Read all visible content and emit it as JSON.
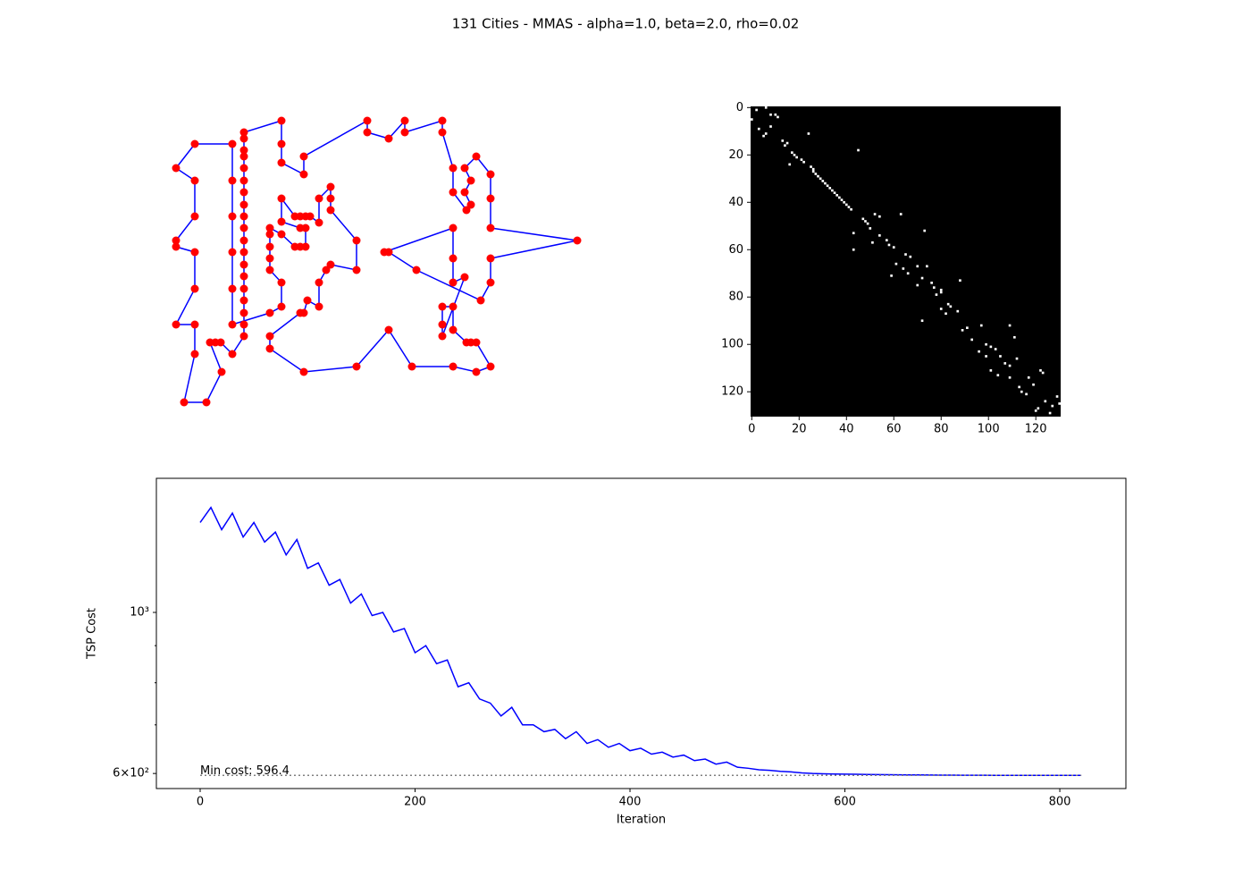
{
  "title": "131 Cities - MMAS - alpha=1.0, beta=2.0, rho=0.02",
  "chart_data": [
    {
      "type": "tour",
      "line_color": "#0000ff",
      "marker_color": "#ff0000",
      "xlim": [
        180,
        660
      ],
      "ylim": [
        460,
        125
      ],
      "x": [
        315,
        273,
        273,
        273,
        273,
        273,
        273,
        273,
        273,
        273,
        273,
        273,
        273,
        273,
        273,
        273,
        273,
        273,
        273,
        273,
        260,
        247,
        241,
        235,
        248,
        231,
        206,
        218,
        218,
        197,
        218,
        218,
        197,
        197,
        218,
        218,
        197,
        218,
        260,
        260,
        260,
        260,
        260,
        260,
        302,
        315,
        315,
        302,
        302,
        302,
        302,
        302,
        315,
        330,
        336,
        342,
        342,
        336,
        315,
        315,
        330,
        336,
        342,
        347,
        357,
        357,
        370,
        370,
        370,
        399,
        399,
        370,
        365,
        357,
        357,
        344,
        340,
        336,
        302,
        302,
        340,
        399,
        435,
        461,
        507,
        533,
        549,
        533,
        527,
        522,
        507,
        507,
        495,
        495,
        495,
        520,
        507,
        507,
        507,
        430,
        435,
        466,
        538,
        549,
        549,
        646,
        549,
        549,
        549,
        533,
        520,
        527,
        520,
        527,
        522,
        507,
        507,
        495,
        495,
        453,
        453,
        435,
        411,
        411,
        340,
        340,
        315,
        315
      ],
      "y": [
        135,
        148,
        155,
        168,
        175,
        188,
        202,
        215,
        229,
        242,
        255,
        269,
        282,
        296,
        309,
        323,
        336,
        350,
        363,
        376,
        396,
        383,
        383,
        383,
        416,
        450,
        450,
        396,
        363,
        363,
        323,
        282,
        276,
        269,
        242,
        202,
        188,
        161,
        161,
        202,
        242,
        282,
        323,
        363,
        350,
        343,
        316,
        302,
        289,
        276,
        262,
        255,
        262,
        276,
        276,
        276,
        255,
        255,
        248,
        222,
        242,
        242,
        242,
        242,
        249,
        222,
        209,
        222,
        235,
        269,
        302,
        296,
        302,
        316,
        343,
        336,
        350,
        350,
        376,
        390,
        416,
        410,
        369,
        410,
        410,
        416,
        410,
        383,
        383,
        383,
        369,
        343,
        343,
        363,
        376,
        310,
        316,
        289,
        255,
        282,
        282,
        302,
        336,
        316,
        289,
        269,
        255,
        222,
        195,
        175,
        188,
        202,
        215,
        229,
        235,
        215,
        188,
        148,
        135,
        148,
        135,
        155,
        148,
        135,
        175,
        195,
        182,
        161
      ]
    },
    {
      "type": "heatmap",
      "size": 131,
      "xlim": [
        -0.5,
        130.5
      ],
      "ylim": [
        130.5,
        -0.5
      ],
      "xticks": [
        0,
        20,
        40,
        60,
        80,
        100,
        120
      ],
      "yticks": [
        0,
        20,
        40,
        60,
        80,
        100,
        120
      ],
      "cells": [
        [
          1,
          2
        ],
        [
          5,
          0
        ],
        [
          0,
          6
        ],
        [
          3,
          8
        ],
        [
          3,
          10
        ],
        [
          4,
          11
        ],
        [
          9,
          3
        ],
        [
          12,
          5
        ],
        [
          11,
          6
        ],
        [
          8,
          8
        ],
        [
          14,
          13
        ],
        [
          16,
          14
        ],
        [
          15,
          15
        ],
        [
          24,
          16
        ],
        [
          19,
          17
        ],
        [
          20,
          18
        ],
        [
          21,
          19
        ],
        [
          22,
          21
        ],
        [
          23,
          22
        ],
        [
          11,
          24
        ],
        [
          25,
          25
        ],
        [
          26,
          26
        ],
        [
          27,
          26
        ],
        [
          28,
          27
        ],
        [
          29,
          28
        ],
        [
          30,
          29
        ],
        [
          31,
          30
        ],
        [
          32,
          31
        ],
        [
          33,
          32
        ],
        [
          34,
          33
        ],
        [
          35,
          34
        ],
        [
          36,
          35
        ],
        [
          37,
          36
        ],
        [
          38,
          37
        ],
        [
          39,
          38
        ],
        [
          40,
          39
        ],
        [
          41,
          40
        ],
        [
          42,
          41
        ],
        [
          43,
          42
        ],
        [
          18,
          45
        ],
        [
          53,
          43
        ],
        [
          60,
          43
        ],
        [
          47,
          47
        ],
        [
          48,
          48
        ],
        [
          49,
          49
        ],
        [
          51,
          50
        ],
        [
          45,
          52
        ],
        [
          46,
          54
        ],
        [
          45,
          63
        ],
        [
          57,
          51
        ],
        [
          54,
          54
        ],
        [
          56,
          57
        ],
        [
          58,
          58
        ],
        [
          59,
          60
        ],
        [
          71,
          59
        ],
        [
          52,
          73
        ],
        [
          62,
          65
        ],
        [
          63,
          67
        ],
        [
          66,
          61
        ],
        [
          68,
          64
        ],
        [
          70,
          66
        ],
        [
          67,
          70
        ],
        [
          67,
          74
        ],
        [
          72,
          72
        ],
        [
          75,
          70
        ],
        [
          74,
          76
        ],
        [
          76,
          77
        ],
        [
          77,
          80
        ],
        [
          79,
          78
        ],
        [
          78,
          80
        ],
        [
          83,
          83
        ],
        [
          84,
          84
        ],
        [
          86,
          87
        ],
        [
          85,
          80
        ],
        [
          87,
          82
        ],
        [
          73,
          88
        ],
        [
          90,
          72
        ],
        [
          94,
          89
        ],
        [
          93,
          91
        ],
        [
          92,
          97
        ],
        [
          98,
          93
        ],
        [
          103,
          96
        ],
        [
          100,
          99
        ],
        [
          101,
          101
        ],
        [
          102,
          103
        ],
        [
          105,
          105
        ],
        [
          108,
          107
        ],
        [
          92,
          109
        ],
        [
          97,
          111
        ],
        [
          109,
          109
        ],
        [
          105,
          99
        ],
        [
          111,
          101
        ],
        [
          113,
          104
        ],
        [
          106,
          112
        ],
        [
          118,
          113
        ],
        [
          120,
          114
        ],
        [
          121,
          116
        ],
        [
          114,
          117
        ],
        [
          117,
          119
        ],
        [
          111,
          122
        ],
        [
          112,
          123
        ],
        [
          128,
          120
        ],
        [
          127,
          121
        ],
        [
          124,
          124
        ],
        [
          129,
          126
        ],
        [
          126,
          127
        ],
        [
          122,
          129
        ],
        [
          125,
          130
        ],
        [
          114,
          109
        ]
      ]
    },
    {
      "type": "line",
      "color": "#0000ff",
      "ylog": true,
      "xlabel": "Iteration",
      "ylabel": "TSP Cost",
      "xlim": [
        -40.75,
        861.5
      ],
      "ylim": [
        572,
        1530
      ],
      "xticks": [
        0,
        200,
        400,
        600,
        800
      ],
      "yticks": [
        {
          "value": 600,
          "label": "6×10²"
        },
        {
          "value": 1000,
          "label": "10³"
        }
      ],
      "yminorticks": [
        700,
        800,
        900
      ],
      "min_cost": 596.4,
      "annotation": "Min cost: 596.4",
      "x": [
        0,
        10,
        20,
        30,
        40,
        50,
        60,
        70,
        80,
        90,
        100,
        110,
        120,
        130,
        140,
        150,
        160,
        170,
        180,
        190,
        200,
        210,
        220,
        230,
        240,
        250,
        260,
        270,
        280,
        290,
        300,
        310,
        320,
        330,
        340,
        350,
        360,
        370,
        380,
        390,
        400,
        410,
        420,
        430,
        440,
        450,
        460,
        470,
        480,
        490,
        500,
        510,
        520,
        530,
        540,
        550,
        560,
        570,
        580,
        590,
        600,
        610,
        620,
        630,
        640,
        650,
        660,
        670,
        680,
        690,
        700,
        710,
        720,
        730,
        740,
        750,
        760,
        770,
        780,
        790,
        800,
        810,
        820
      ],
      "values": [
        1330,
        1395,
        1300,
        1370,
        1270,
        1330,
        1250,
        1290,
        1200,
        1260,
        1150,
        1170,
        1090,
        1110,
        1030,
        1060,
        990,
        1000,
        940,
        950,
        880,
        900,
        850,
        860,
        790,
        800,
        760,
        750,
        720,
        740,
        700,
        700,
        685,
        690,
        670,
        685,
        660,
        668,
        652,
        660,
        645,
        650,
        638,
        642,
        632,
        636,
        625,
        628,
        618,
        622,
        612,
        610,
        607,
        606,
        604,
        603,
        601,
        600,
        599.5,
        599,
        598.8,
        598.6,
        598.2,
        598,
        597.8,
        597.5,
        597.3,
        597.2,
        597,
        596.9,
        596.8,
        596.7,
        596.6,
        596.6,
        596.5,
        596.5,
        596.5,
        596.4,
        596.4,
        596.4,
        596.4,
        596.4,
        596.4
      ]
    }
  ]
}
